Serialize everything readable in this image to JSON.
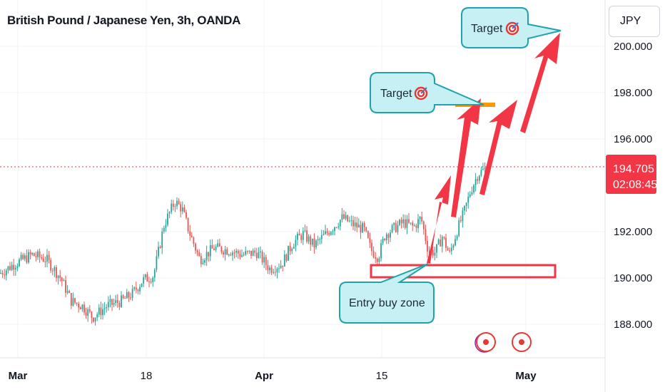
{
  "header": {
    "title": "British Pound / Japanese Yen, 3h, OANDA"
  },
  "toolbar": {
    "currency": "JPY"
  },
  "annotations": {
    "target_upper": "Target",
    "target_lower": "Target",
    "entry_zone": "Entry buy zone"
  },
  "price": {
    "last": "194.705",
    "countdown": "02:08:45",
    "last_value": 194.705
  },
  "colors": {
    "up": "#26a69a",
    "down": "#ef5350",
    "arrow": "#f23645",
    "callout_fill": "#c7f0f4",
    "callout_border": "#1fa3a8",
    "target_bar": "#ff9800"
  },
  "chart_data": {
    "type": "candlestick",
    "title": "British Pound / Japanese Yen, 3h, OANDA",
    "y_ticks": [
      "200.000",
      "198.000",
      "196.000",
      "192.000",
      "190.000",
      "188.000"
    ],
    "y_tick_values": [
      200,
      198,
      196,
      192,
      190,
      188
    ],
    "x_ticks": [
      {
        "label": "Mar",
        "bold": true
      },
      {
        "label": "18",
        "bold": false
      },
      {
        "label": "Apr",
        "bold": true
      },
      {
        "label": "15",
        "bold": false
      },
      {
        "label": "May",
        "bold": true
      }
    ],
    "ylim": [
      186.9,
      201.5
    ],
    "anchors": [
      [
        0,
        190.2
      ],
      [
        20,
        190.6
      ],
      [
        45,
        191.0
      ],
      [
        65,
        190.8
      ],
      [
        85,
        190.0
      ],
      [
        100,
        189.0
      ],
      [
        115,
        188.8
      ],
      [
        130,
        188.3
      ],
      [
        150,
        188.8
      ],
      [
        170,
        189.0
      ],
      [
        185,
        189.3
      ],
      [
        200,
        189.9
      ],
      [
        215,
        190.1
      ],
      [
        230,
        192.3
      ],
      [
        245,
        193.3
      ],
      [
        255,
        193.0
      ],
      [
        265,
        192.0
      ],
      [
        280,
        190.8
      ],
      [
        300,
        191.3
      ],
      [
        320,
        191.2
      ],
      [
        340,
        191.0
      ],
      [
        360,
        191.1
      ],
      [
        378,
        190.4
      ],
      [
        395,
        190.6
      ],
      [
        410,
        191.5
      ],
      [
        425,
        191.9
      ],
      [
        440,
        191.4
      ],
      [
        460,
        192.0
      ],
      [
        480,
        192.6
      ],
      [
        495,
        192.3
      ],
      [
        510,
        192.1
      ],
      [
        520,
        191.2
      ],
      [
        530,
        190.9
      ],
      [
        540,
        191.9
      ],
      [
        550,
        192.1
      ],
      [
        565,
        192.4
      ],
      [
        580,
        192.2
      ],
      [
        590,
        192.6
      ],
      [
        600,
        191.2
      ],
      [
        610,
        191.1
      ],
      [
        620,
        191.8
      ],
      [
        630,
        191.0
      ],
      [
        640,
        192.0
      ],
      [
        650,
        192.8
      ],
      [
        660,
        193.8
      ],
      [
        670,
        194.5
      ],
      [
        680,
        194.7
      ]
    ],
    "entry_zone_range": [
      190.0,
      190.5
    ],
    "targets": [
      197.4,
      200.7
    ]
  }
}
